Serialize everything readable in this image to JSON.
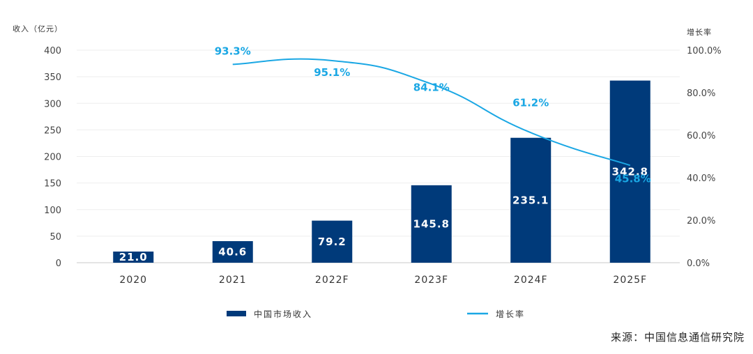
{
  "chart_data": {
    "type": "bar",
    "categories": [
      "2020",
      "2021",
      "2022F",
      "2023F",
      "2024F",
      "2025F"
    ],
    "series": [
      {
        "name": "中国市场收入",
        "type": "bar",
        "axis": "left",
        "color": "#003a7a",
        "values": [
          21.0,
          40.6,
          79.2,
          145.8,
          235.1,
          342.8
        ],
        "labels": [
          "21.0",
          "40.6",
          "79.2",
          "145.8",
          "235.1",
          "342.8"
        ]
      },
      {
        "name": "增长率",
        "type": "line",
        "axis": "right",
        "color": "#1aa7e4",
        "values": [
          null,
          93.3,
          95.1,
          84.1,
          61.2,
          45.8
        ],
        "labels": [
          "",
          "93.3%",
          "95.1%",
          "84.1%",
          "61.2%",
          "45.8%"
        ]
      }
    ],
    "ylabel": "收入（亿元）",
    "y2label": "增长率",
    "ylim": [
      0,
      400
    ],
    "y2lim": [
      0,
      100
    ],
    "yticks": [
      "0",
      "50",
      "100",
      "150",
      "200",
      "250",
      "300",
      "350",
      "400"
    ],
    "y2ticks": [
      "0.0%",
      "20.0%",
      "40.0%",
      "60.0%",
      "80.0%",
      "100.0%"
    ],
    "grid": true,
    "legend": "bottom"
  },
  "source": "来源：中国信息通信研究院"
}
